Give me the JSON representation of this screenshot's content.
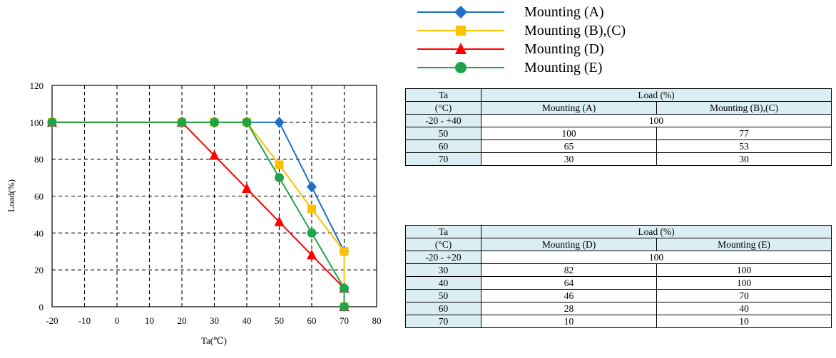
{
  "chart_data": {
    "type": "line",
    "xlabel": "Ta(℃)",
    "ylabel": "Load(%)",
    "xlim": [
      -20,
      80
    ],
    "ylim": [
      0,
      120
    ],
    "xticks": [
      -20,
      -10,
      0,
      10,
      20,
      30,
      40,
      50,
      60,
      70,
      80
    ],
    "yticks": [
      0,
      20,
      40,
      60,
      80,
      100,
      120
    ],
    "grid": true,
    "legend_position": "top-right",
    "series": [
      {
        "name": "Mounting (A)",
        "color": "#1f6fc4",
        "marker": "diamond",
        "x": [
          -20,
          20,
          30,
          40,
          50,
          60,
          70
        ],
        "y": [
          100,
          100,
          100,
          100,
          100,
          65,
          30
        ]
      },
      {
        "name": "Mounting (B),(C)",
        "color": "#ffc000",
        "marker": "square",
        "x": [
          -20,
          20,
          30,
          40,
          50,
          60,
          70,
          70
        ],
        "y": [
          100,
          100,
          100,
          100,
          77,
          53,
          30,
          0
        ]
      },
      {
        "name": "Mounting (D)",
        "color": "#ff0000",
        "marker": "triangle",
        "x": [
          -20,
          20,
          30,
          40,
          50,
          60,
          70,
          70
        ],
        "y": [
          100,
          100,
          82,
          64,
          46,
          28,
          10,
          0
        ]
      },
      {
        "name": "Mounting (E)",
        "color": "#1fa44c",
        "marker": "circle",
        "x": [
          -20,
          20,
          30,
          40,
          50,
          60,
          70,
          70
        ],
        "y": [
          100,
          100,
          100,
          100,
          70,
          40,
          10,
          0
        ]
      }
    ]
  },
  "legend": [
    {
      "label": "Mounting (A)",
      "color": "#1f6fc4",
      "marker": "diamond"
    },
    {
      "label": "Mounting (B),(C)",
      "color": "#ffc000",
      "marker": "square"
    },
    {
      "label": "Mounting (D)",
      "color": "#ff0000",
      "marker": "triangle"
    },
    {
      "label": "Mounting (E)",
      "color": "#1fa44c",
      "marker": "circle"
    }
  ],
  "table1": {
    "header_ta": "Ta",
    "header_unit": "(°C)",
    "header_load": "Load (%)",
    "col_a": "Mounting (A)",
    "col_b": "Mounting (B),(C)",
    "span_row": {
      "ta": "-20 - +40",
      "value": "100"
    },
    "rows": [
      {
        "ta": "50",
        "a": "100",
        "b": "77"
      },
      {
        "ta": "60",
        "a": "65",
        "b": "53"
      },
      {
        "ta": "70",
        "a": "30",
        "b": "30"
      }
    ]
  },
  "table2": {
    "header_ta": "Ta",
    "header_unit": "(°C)",
    "header_load": "Load (%)",
    "col_a": "Mounting (D)",
    "col_b": "Mounting (E)",
    "span_row": {
      "ta": "-20 - +20",
      "value": "100"
    },
    "rows": [
      {
        "ta": "30",
        "a": "82",
        "b": "100"
      },
      {
        "ta": "40",
        "a": "64",
        "b": "100"
      },
      {
        "ta": "50",
        "a": "46",
        "b": "70"
      },
      {
        "ta": "60",
        "a": "28",
        "b": "40"
      },
      {
        "ta": "70",
        "a": "10",
        "b": "10"
      }
    ]
  }
}
